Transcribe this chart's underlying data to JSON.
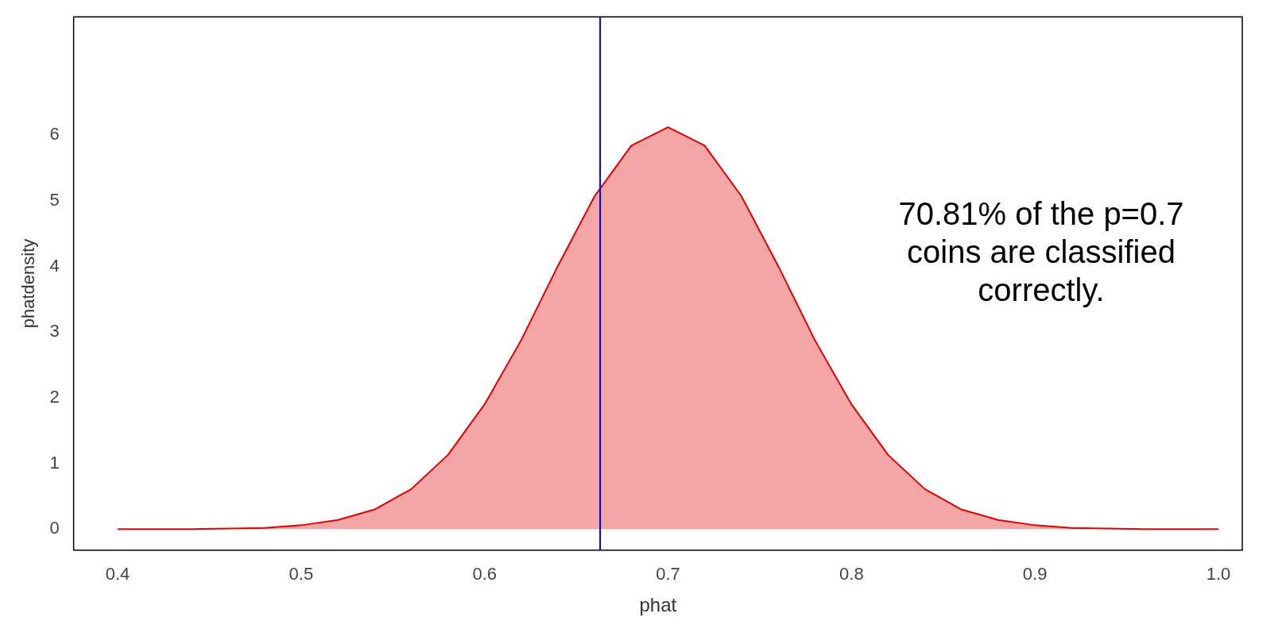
{
  "chart_data": {
    "type": "area",
    "xlabel": "phat",
    "ylabel": "phatdensity",
    "x": [
      0.4,
      0.44,
      0.46,
      0.48,
      0.5,
      0.52,
      0.54,
      0.56,
      0.58,
      0.6,
      0.62,
      0.64,
      0.66,
      0.68,
      0.7,
      0.72,
      0.74,
      0.76,
      0.78,
      0.8,
      0.82,
      0.84,
      0.86,
      0.88,
      0.9,
      0.92,
      0.94,
      0.96,
      1.0
    ],
    "series": [
      {
        "color": "#e00000",
        "values": [
          0,
          0,
          0.01,
          0.02,
          0.06,
          0.14,
          0.3,
          0.61,
          1.13,
          1.9,
          2.88,
          4.01,
          5.07,
          5.84,
          6.12,
          5.84,
          5.07,
          4.01,
          2.88,
          1.9,
          1.13,
          0.61,
          0.3,
          0.14,
          0.06,
          0.02,
          0.01,
          0,
          0
        ]
      }
    ],
    "xlim": [
      0.376,
      1.013
    ],
    "xticks": [
      {
        "value": 0.4,
        "label": "0.4"
      },
      {
        "value": 0.5,
        "label": "0.5"
      },
      {
        "value": 0.6,
        "label": "0.6"
      },
      {
        "value": 0.7,
        "label": "0.7"
      },
      {
        "value": 0.8,
        "label": "0.8"
      },
      {
        "value": 0.9,
        "label": "0.9"
      },
      {
        "value": 1.0,
        "label": "1.0"
      }
    ],
    "ylim": [
      -0.32,
      7.8
    ],
    "yticks": [
      0,
      1,
      2,
      3,
      4,
      5,
      6
    ],
    "ref_lines": [
      {
        "axis": "x",
        "value": 0.663,
        "color": "#0000cc"
      }
    ],
    "annotations": [
      "70.81% of the p=0.7 coins are classified correctly."
    ],
    "grid": false,
    "legend": false,
    "marker": "none"
  }
}
